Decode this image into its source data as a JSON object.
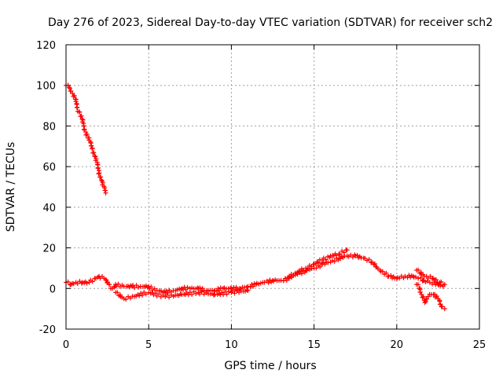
{
  "chart_data": {
    "type": "scatter",
    "title": "Day 276 of 2023, Sidereal Day-to-day VTEC variation (SDTVAR) for receiver sch2",
    "xlabel": "GPS time / hours",
    "ylabel": "SDTVAR / TECUs",
    "xlim": [
      0,
      25
    ],
    "ylim": [
      -20,
      120
    ],
    "x_ticks": [
      0,
      5,
      10,
      15,
      20,
      25
    ],
    "y_ticks": [
      -20,
      0,
      20,
      40,
      60,
      80,
      100,
      120
    ],
    "x_tick_labels": [
      "0",
      "5",
      "10",
      "15",
      "20",
      "25"
    ],
    "y_tick_labels": [
      "-20",
      "0",
      "20",
      "40",
      "60",
      "80",
      "100",
      "120"
    ],
    "grid": true,
    "marker": "plus",
    "color": "#ff0000",
    "series": [
      {
        "name": "falling-arc",
        "points": [
          [
            0.0,
            100
          ],
          [
            0.2,
            99
          ],
          [
            0.4,
            96
          ],
          [
            0.6,
            92
          ],
          [
            0.8,
            87
          ],
          [
            1.0,
            82
          ],
          [
            1.2,
            77
          ],
          [
            1.4,
            73
          ],
          [
            1.6,
            69
          ],
          [
            1.8,
            63
          ],
          [
            2.0,
            58
          ],
          [
            2.2,
            51
          ],
          [
            2.4,
            47
          ]
        ]
      },
      {
        "name": "main-band",
        "points": [
          [
            0.0,
            3
          ],
          [
            0.3,
            2
          ],
          [
            0.6,
            3
          ],
          [
            1.0,
            3
          ],
          [
            1.4,
            3
          ],
          [
            1.8,
            5
          ],
          [
            2.0,
            6
          ],
          [
            2.3,
            5
          ],
          [
            2.6,
            2
          ],
          [
            2.8,
            0
          ],
          [
            3.0,
            2
          ],
          [
            3.5,
            1
          ],
          [
            4.0,
            1
          ],
          [
            4.5,
            1
          ],
          [
            5.0,
            1
          ],
          [
            5.5,
            -1
          ],
          [
            6.0,
            -2
          ],
          [
            6.5,
            -1
          ],
          [
            7.0,
            0
          ],
          [
            7.5,
            0
          ],
          [
            8.0,
            0
          ],
          [
            8.5,
            -1
          ],
          [
            9.0,
            -1
          ],
          [
            9.5,
            0
          ],
          [
            10.0,
            0
          ],
          [
            10.5,
            0
          ],
          [
            11.0,
            1
          ],
          [
            11.5,
            2
          ],
          [
            12.0,
            3
          ],
          [
            12.5,
            4
          ],
          [
            13.0,
            4
          ],
          [
            13.5,
            5
          ],
          [
            14.0,
            7
          ],
          [
            14.5,
            9
          ],
          [
            15.0,
            10
          ],
          [
            15.5,
            12
          ],
          [
            16.0,
            13
          ],
          [
            16.5,
            15
          ],
          [
            17.0,
            16
          ],
          [
            17.5,
            16
          ],
          [
            18.0,
            15
          ],
          [
            18.5,
            13
          ],
          [
            19.0,
            9
          ],
          [
            19.5,
            6
          ],
          [
            20.0,
            5
          ],
          [
            20.5,
            6
          ],
          [
            21.0,
            6
          ],
          [
            21.3,
            5
          ],
          [
            21.6,
            4
          ],
          [
            22.0,
            3
          ],
          [
            22.5,
            2
          ],
          [
            22.8,
            1
          ]
        ]
      },
      {
        "name": "upper-strand",
        "points": [
          [
            13.5,
            6
          ],
          [
            14.0,
            8
          ],
          [
            14.5,
            10
          ],
          [
            15.0,
            12
          ],
          [
            15.5,
            14
          ],
          [
            16.0,
            16
          ],
          [
            16.5,
            17
          ],
          [
            17.0,
            19
          ]
        ]
      },
      {
        "name": "lower-strand",
        "points": [
          [
            3.0,
            -2
          ],
          [
            3.3,
            -4
          ],
          [
            3.5,
            -5
          ],
          [
            5.0,
            -2
          ],
          [
            6.0,
            -4
          ],
          [
            7.0,
            -3
          ],
          [
            8.0,
            -2
          ],
          [
            9.0,
            -3
          ],
          [
            10.0,
            -2
          ],
          [
            11.0,
            -1
          ]
        ]
      },
      {
        "name": "late-spur",
        "points": [
          [
            21.2,
            9
          ],
          [
            21.5,
            7
          ],
          [
            21.8,
            6
          ],
          [
            22.2,
            5
          ],
          [
            22.6,
            3
          ],
          [
            22.9,
            2
          ]
        ]
      },
      {
        "name": "late-drops",
        "points": [
          [
            21.2,
            2
          ],
          [
            21.4,
            0
          ],
          [
            21.5,
            -3
          ],
          [
            21.7,
            -7
          ],
          [
            21.9,
            -4
          ],
          [
            22.1,
            -3
          ],
          [
            22.3,
            -3
          ],
          [
            22.5,
            -5
          ],
          [
            22.7,
            -9
          ],
          [
            22.9,
            -10
          ]
        ]
      }
    ]
  }
}
